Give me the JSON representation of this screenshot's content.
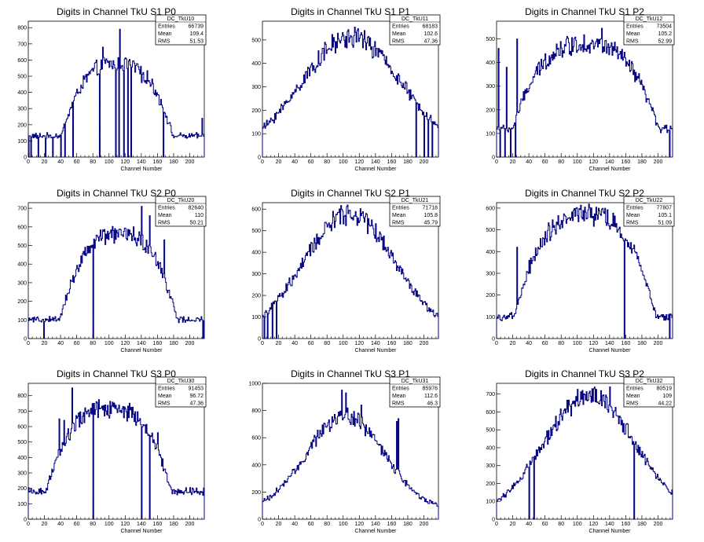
{
  "xlabel": "Channel Number",
  "x_ticks": [
    0,
    20,
    40,
    60,
    80,
    100,
    120,
    140,
    160,
    180,
    200
  ],
  "stats_labels": {
    "entries": "Entries",
    "mean": "Mean",
    "rms": "RMS"
  },
  "colors": {
    "histogram": "#000080",
    "axis": "#000000",
    "background": "#ffffff"
  },
  "chart_data": [
    {
      "type": "histogram",
      "title": "Digits in Channel TkU S1 P0",
      "stats_name": "DC_TkU10",
      "entries": "66739",
      "mean": "109.4",
      "rms": "51.53",
      "xlim": [
        0,
        218
      ],
      "ylim": [
        0,
        840
      ],
      "y_ticks": [
        0,
        100,
        200,
        300,
        400,
        500,
        600,
        700,
        800
      ],
      "shape": {
        "kind": "plateau",
        "center": 110,
        "width": 55,
        "base": 130,
        "peak": 580
      },
      "spikes": [
        [
          113,
          790
        ],
        [
          92,
          680
        ],
        [
          140,
          460
        ],
        [
          103,
          560
        ],
        [
          215,
          240
        ]
      ],
      "dips": [
        0,
        3,
        12,
        21,
        30,
        40,
        45,
        55,
        88,
        108,
        112,
        118,
        123,
        127,
        167
      ]
    },
    {
      "type": "histogram",
      "title": "Digits in Channel TkU S1 P1",
      "stats_name": "DC_TkU11",
      "entries": "68183",
      "mean": "102.6",
      "rms": "47.36",
      "xlim": [
        0,
        218
      ],
      "ylim": [
        0,
        580
      ],
      "y_ticks": [
        0,
        100,
        200,
        300,
        400,
        500
      ],
      "shape": {
        "kind": "gauss",
        "center": 110,
        "width": 62,
        "base": 20,
        "peak": 510
      },
      "spikes": [
        [
          114,
          555
        ],
        [
          126,
          540
        ]
      ],
      "dips": [
        190,
        200,
        205,
        210
      ]
    },
    {
      "type": "histogram",
      "title": "Digits in Channel TkU S1 P2",
      "stats_name": "DC_TkU12",
      "entries": "73504",
      "mean": "105.2",
      "rms": "52.99",
      "xlim": [
        0,
        218
      ],
      "ylim": [
        0,
        575
      ],
      "y_ticks": [
        0,
        100,
        200,
        300,
        400,
        500
      ],
      "shape": {
        "kind": "plateau",
        "center": 110,
        "width": 72,
        "base": 120,
        "peak": 480
      },
      "spikes": [
        [
          25,
          500
        ],
        [
          2,
          460
        ],
        [
          12,
          380
        ],
        [
          130,
          545
        ]
      ],
      "dips": [
        4,
        10,
        17,
        23,
        214
      ]
    },
    {
      "type": "histogram",
      "title": "Digits in Channel TkU S2 P0",
      "stats_name": "DC_TkU20",
      "entries": "82640",
      "mean": "110",
      "rms": "50.21",
      "xlim": [
        0,
        218
      ],
      "ylim": [
        0,
        730
      ],
      "y_ticks": [
        0,
        100,
        200,
        300,
        400,
        500,
        600,
        700
      ],
      "shape": {
        "kind": "plateau",
        "center": 112,
        "width": 58,
        "base": 100,
        "peak": 560
      },
      "spikes": [
        [
          140,
          710
        ],
        [
          150,
          660
        ],
        [
          168,
          530
        ],
        [
          130,
          600
        ]
      ],
      "dips": [
        19,
        80,
        216
      ]
    },
    {
      "type": "histogram",
      "title": "Digits in Channel TkU S2 P1",
      "stats_name": "DC_TkU21",
      "entries": "71718",
      "mean": "105.8",
      "rms": "45.79",
      "xlim": [
        0,
        218
      ],
      "ylim": [
        0,
        630
      ],
      "y_ticks": [
        0,
        100,
        200,
        300,
        400,
        500,
        600
      ],
      "shape": {
        "kind": "gauss",
        "center": 108,
        "width": 56,
        "base": 20,
        "peak": 580
      },
      "spikes": [
        [
          108,
          595
        ]
      ],
      "dips": [
        2,
        6,
        12,
        17
      ]
    },
    {
      "type": "histogram",
      "title": "Digits in Channel TkU S2 P2",
      "stats_name": "DC_TkU22",
      "entries": "77807",
      "mean": "105.1",
      "rms": "51.09",
      "xlim": [
        0,
        218
      ],
      "ylim": [
        0,
        625
      ],
      "y_ticks": [
        0,
        100,
        200,
        300,
        400,
        500,
        600
      ],
      "shape": {
        "kind": "plateau",
        "center": 110,
        "width": 70,
        "base": 100,
        "peak": 570
      },
      "spikes": [
        [
          25,
          420
        ],
        [
          40,
          360
        ],
        [
          130,
          595
        ]
      ],
      "dips": [
        158,
        214
      ]
    },
    {
      "type": "histogram",
      "title": "Digits in Channel TkU S3 P0",
      "stats_name": "DC_TkU30",
      "entries": "91453",
      "mean": "96.72",
      "rms": "47.36",
      "xlim": [
        0,
        218
      ],
      "ylim": [
        0,
        880
      ],
      "y_ticks": [
        0,
        100,
        200,
        300,
        400,
        500,
        600,
        700,
        800
      ],
      "shape": {
        "kind": "plateau",
        "center": 100,
        "width": 62,
        "base": 180,
        "peak": 720
      },
      "spikes": [
        [
          54,
          850
        ],
        [
          38,
          650
        ],
        [
          44,
          640
        ],
        [
          160,
          560
        ]
      ],
      "dips": [
        80,
        140,
        150
      ]
    },
    {
      "type": "histogram",
      "title": "Digits in Channel TkU S3 P1",
      "stats_name": "DC_TkU31",
      "entries": "85976",
      "mean": "112.6",
      "rms": "46.3",
      "xlim": [
        0,
        218
      ],
      "ylim": [
        0,
        1000
      ],
      "y_ticks": [
        0,
        200,
        400,
        600,
        800,
        1000
      ],
      "shape": {
        "kind": "gauss",
        "center": 103,
        "width": 48,
        "base": 60,
        "peak": 760
      },
      "spikes": [
        [
          98,
          950
        ],
        [
          103,
          930
        ],
        [
          122,
          840
        ],
        [
          168,
          740
        ],
        [
          166,
          720
        ]
      ],
      "dips": []
    },
    {
      "type": "histogram",
      "title": "Digits in Channel TkU S3 P2",
      "stats_name": "DC_TkU32",
      "entries": "80519",
      "mean": "109",
      "rms": "44.22",
      "xlim": [
        0,
        218
      ],
      "ylim": [
        0,
        760
      ],
      "y_ticks": [
        0,
        100,
        200,
        300,
        400,
        500,
        600,
        700
      ],
      "shape": {
        "kind": "gauss",
        "center": 115,
        "width": 56,
        "base": 20,
        "peak": 690
      },
      "spikes": [
        [
          140,
          740
        ],
        [
          118,
          730
        ]
      ],
      "dips": [
        40,
        46,
        170
      ]
    }
  ]
}
